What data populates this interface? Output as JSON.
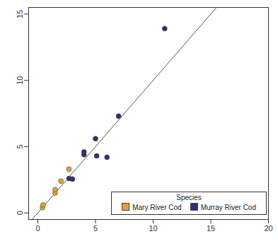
{
  "chart_data": {
    "type": "scatter",
    "xlim": [
      -0.8,
      20
    ],
    "ylim": [
      -0.5,
      15.5
    ],
    "xticks": [
      0,
      5,
      10,
      15,
      20
    ],
    "yticks": [
      0,
      5,
      10,
      15
    ],
    "legend": "bottom-right",
    "legend_title": "Species",
    "reference_line": {
      "x": [
        -0.8,
        20
      ],
      "y": [
        -0.8,
        20
      ]
    },
    "series": [
      {
        "name": "Mary River Cod",
        "color": "#e0a33a",
        "x": [
          0.4,
          0.45,
          1.5,
          1.5,
          2.0,
          2.7
        ],
        "y": [
          0.4,
          0.6,
          1.5,
          1.75,
          2.4,
          3.3
        ]
      },
      {
        "name": "Murray River Cod",
        "color": "#2b3270",
        "x": [
          2.7,
          3.0,
          4.0,
          4.0,
          5.0,
          5.1,
          6.0,
          7.0,
          11.0
        ],
        "y": [
          2.6,
          2.55,
          4.4,
          4.6,
          5.6,
          4.3,
          4.2,
          7.3,
          13.9
        ]
      }
    ]
  }
}
